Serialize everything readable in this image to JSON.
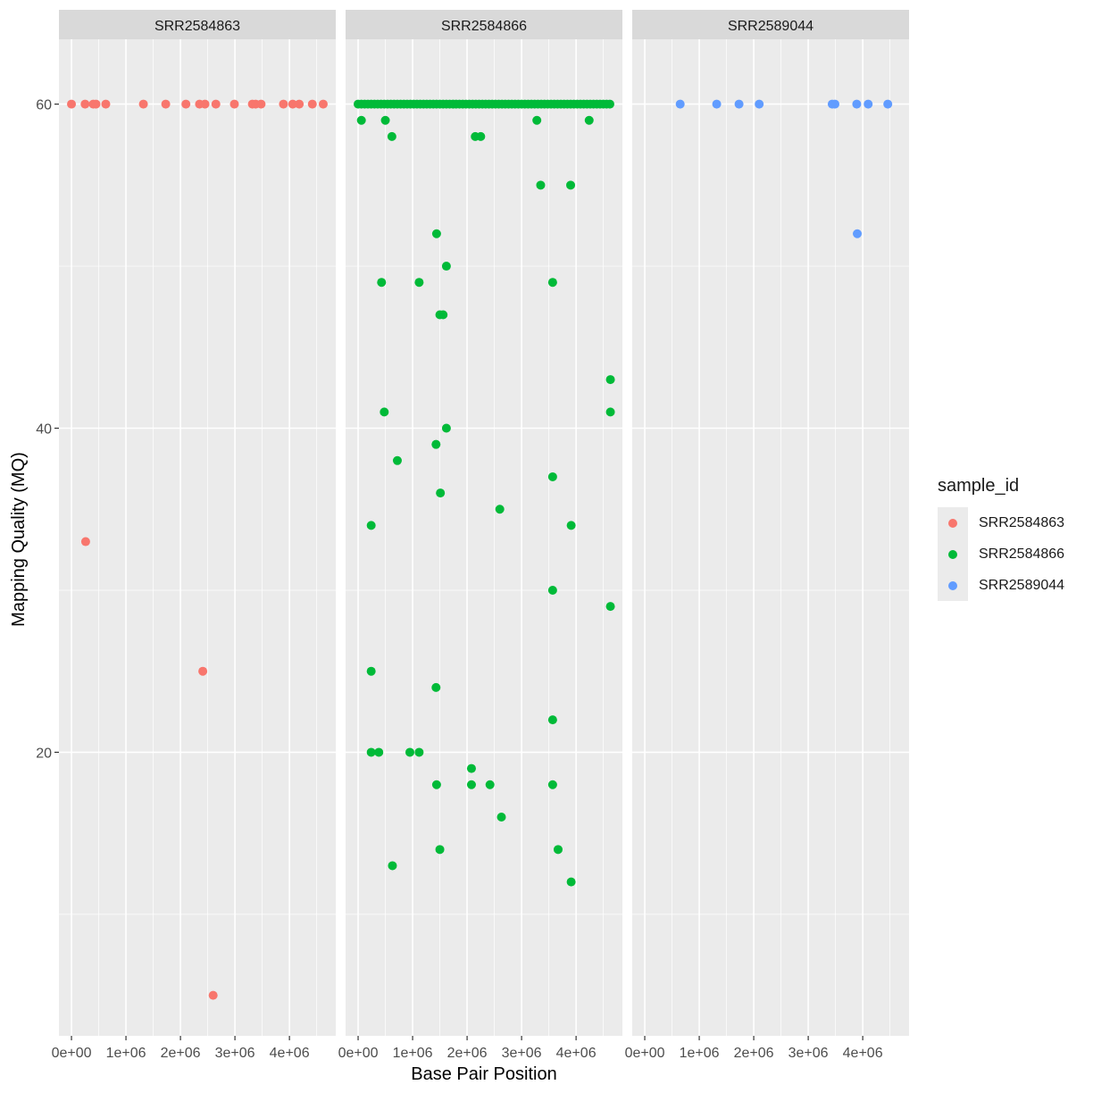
{
  "chart_data": {
    "type": "scatter",
    "xlabel": "Base Pair Position",
    "ylabel": "Mapping Quality (MQ)",
    "xlim": [
      -230000,
      4850000
    ],
    "ylim": [
      2.5,
      64
    ],
    "x_ticks": [
      0,
      1000000,
      2000000,
      3000000,
      4000000
    ],
    "x_tick_labels": [
      "0e+00",
      "1e+06",
      "2e+06",
      "3e+06",
      "4e+06"
    ],
    "y_ticks": [
      20,
      40,
      60
    ],
    "y_tick_labels": [
      "20",
      "40",
      "60"
    ],
    "grid": true,
    "legend": {
      "title": "sample_id",
      "placement": "right",
      "entries": [
        "SRR2584863",
        "SRR2584866",
        "SRR2589044"
      ]
    },
    "panels": [
      {
        "name": "SRR2584863",
        "color": "#F8766D",
        "points": [
          [
            0,
            60
          ],
          [
            250000,
            60
          ],
          [
            400000,
            60
          ],
          [
            450000,
            60
          ],
          [
            630000,
            60
          ],
          [
            1320000,
            60
          ],
          [
            1730000,
            60
          ],
          [
            2100000,
            60
          ],
          [
            2350000,
            60
          ],
          [
            2450000,
            60
          ],
          [
            2650000,
            60
          ],
          [
            2990000,
            60
          ],
          [
            3320000,
            60
          ],
          [
            3380000,
            60
          ],
          [
            3480000,
            60
          ],
          [
            3890000,
            60
          ],
          [
            4060000,
            60
          ],
          [
            4180000,
            60
          ],
          [
            4420000,
            60
          ],
          [
            4620000,
            60
          ],
          [
            260000,
            33
          ],
          [
            2410000,
            25
          ],
          [
            2600000,
            5
          ]
        ]
      },
      {
        "name": "SRR2584866",
        "color": "#00BA38",
        "points": [
          [
            0,
            60
          ],
          [
            60000,
            60
          ],
          [
            120000,
            60
          ],
          [
            180000,
            60
          ],
          [
            240000,
            60
          ],
          [
            300000,
            60
          ],
          [
            360000,
            60
          ],
          [
            420000,
            60
          ],
          [
            480000,
            60
          ],
          [
            540000,
            60
          ],
          [
            600000,
            60
          ],
          [
            660000,
            60
          ],
          [
            720000,
            60
          ],
          [
            780000,
            60
          ],
          [
            840000,
            60
          ],
          [
            900000,
            60
          ],
          [
            960000,
            60
          ],
          [
            1020000,
            60
          ],
          [
            1080000,
            60
          ],
          [
            1140000,
            60
          ],
          [
            1200000,
            60
          ],
          [
            1260000,
            60
          ],
          [
            1320000,
            60
          ],
          [
            1380000,
            60
          ],
          [
            1440000,
            60
          ],
          [
            1500000,
            60
          ],
          [
            1560000,
            60
          ],
          [
            1620000,
            60
          ],
          [
            1680000,
            60
          ],
          [
            1740000,
            60
          ],
          [
            1800000,
            60
          ],
          [
            1860000,
            60
          ],
          [
            1920000,
            60
          ],
          [
            1980000,
            60
          ],
          [
            2040000,
            60
          ],
          [
            2100000,
            60
          ],
          [
            2160000,
            60
          ],
          [
            2220000,
            60
          ],
          [
            2280000,
            60
          ],
          [
            2340000,
            60
          ],
          [
            2400000,
            60
          ],
          [
            2460000,
            60
          ],
          [
            2520000,
            60
          ],
          [
            2580000,
            60
          ],
          [
            2640000,
            60
          ],
          [
            2700000,
            60
          ],
          [
            2760000,
            60
          ],
          [
            2820000,
            60
          ],
          [
            2880000,
            60
          ],
          [
            2940000,
            60
          ],
          [
            3000000,
            60
          ],
          [
            3060000,
            60
          ],
          [
            3120000,
            60
          ],
          [
            3180000,
            60
          ],
          [
            3240000,
            60
          ],
          [
            3300000,
            60
          ],
          [
            3360000,
            60
          ],
          [
            3420000,
            60
          ],
          [
            3480000,
            60
          ],
          [
            3540000,
            60
          ],
          [
            3600000,
            60
          ],
          [
            3660000,
            60
          ],
          [
            3720000,
            60
          ],
          [
            3780000,
            60
          ],
          [
            3840000,
            60
          ],
          [
            3900000,
            60
          ],
          [
            3960000,
            60
          ],
          [
            4020000,
            60
          ],
          [
            4080000,
            60
          ],
          [
            4140000,
            60
          ],
          [
            4200000,
            60
          ],
          [
            4260000,
            60
          ],
          [
            4320000,
            60
          ],
          [
            4380000,
            60
          ],
          [
            4440000,
            60
          ],
          [
            4500000,
            60
          ],
          [
            4560000,
            60
          ],
          [
            4620000,
            60
          ],
          [
            60000,
            59
          ],
          [
            500000,
            59
          ],
          [
            3280000,
            59
          ],
          [
            4240000,
            59
          ],
          [
            620000,
            58
          ],
          [
            2150000,
            58
          ],
          [
            2250000,
            58
          ],
          [
            3350000,
            55
          ],
          [
            3900000,
            55
          ],
          [
            1440000,
            52
          ],
          [
            1620000,
            50
          ],
          [
            430000,
            49
          ],
          [
            1120000,
            49
          ],
          [
            3570000,
            49
          ],
          [
            1500000,
            47
          ],
          [
            1560000,
            47
          ],
          [
            4630000,
            43
          ],
          [
            480000,
            41
          ],
          [
            4630000,
            41
          ],
          [
            1620000,
            40
          ],
          [
            1430000,
            39
          ],
          [
            720000,
            38
          ],
          [
            3570000,
            37
          ],
          [
            1510000,
            36
          ],
          [
            2600000,
            35
          ],
          [
            240000,
            34
          ],
          [
            3910000,
            34
          ],
          [
            3570000,
            30
          ],
          [
            4630000,
            29
          ],
          [
            240000,
            25
          ],
          [
            1430000,
            24
          ],
          [
            3570000,
            22
          ],
          [
            240000,
            20
          ],
          [
            380000,
            20
          ],
          [
            950000,
            20
          ],
          [
            1120000,
            20
          ],
          [
            2080000,
            19
          ],
          [
            1440000,
            18
          ],
          [
            2080000,
            18
          ],
          [
            2420000,
            18
          ],
          [
            3570000,
            18
          ],
          [
            2630000,
            16
          ],
          [
            1500000,
            14
          ],
          [
            3670000,
            14
          ],
          [
            630000,
            13
          ],
          [
            3910000,
            12
          ]
        ]
      },
      {
        "name": "SRR2589044",
        "color": "#619CFF",
        "points": [
          [
            650000,
            60
          ],
          [
            1320000,
            60
          ],
          [
            1730000,
            60
          ],
          [
            2100000,
            60
          ],
          [
            3440000,
            60
          ],
          [
            3490000,
            60
          ],
          [
            3890000,
            60
          ],
          [
            4100000,
            60
          ],
          [
            4460000,
            60
          ],
          [
            3900000,
            52
          ]
        ]
      }
    ]
  }
}
